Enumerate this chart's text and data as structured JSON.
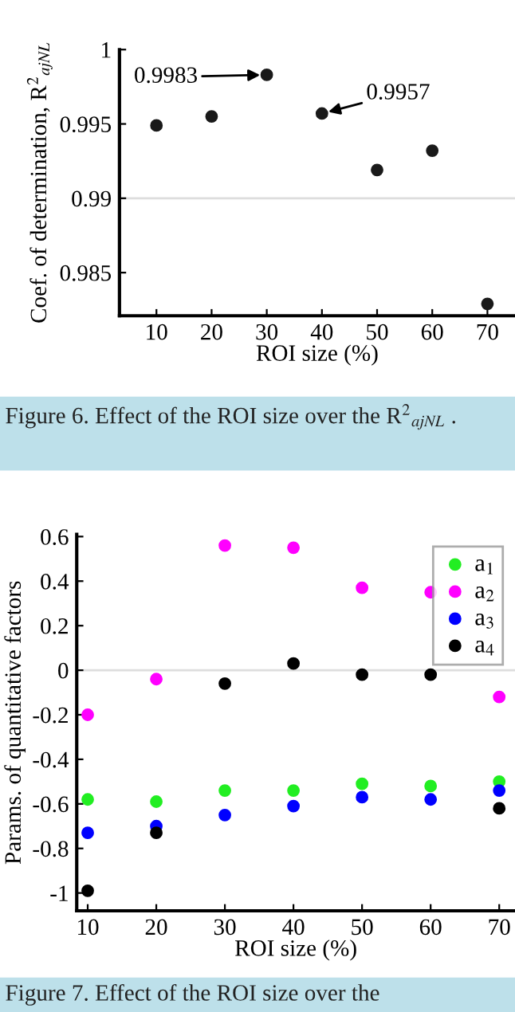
{
  "chart_data": [
    {
      "type": "scatter",
      "ylabel": "Coef. of determination, R$^{2}$$_{ajNL}$",
      "xlabel": "ROI size (%)",
      "x": [
        10,
        20,
        30,
        40,
        50,
        60,
        70
      ],
      "series": [
        {
          "color": "#1a1a1a",
          "values": [
            0.9949,
            0.9955,
            0.9983,
            0.9957,
            0.9919,
            0.9932,
            0.9829
          ]
        }
      ],
      "xlim": [
        3.3,
        75
      ],
      "xticks": [
        10,
        20,
        30,
        40,
        50,
        60,
        70
      ],
      "ylim": [
        0.9821,
        1
      ],
      "yticks": [
        0.985,
        0.99,
        0.995,
        1
      ],
      "ref_lines": [
        {
          "axis": "y",
          "value": 0.99,
          "color": "#dddddd"
        }
      ],
      "marker": "circle",
      "grid": false,
      "legend": false,
      "annotations": [
        {
          "text": "0.9983",
          "x": 30,
          "y": 0.9983
        },
        {
          "text": "0.9957",
          "x": 40,
          "y": 0.9957
        },
        "Figure 6. Effect of the ROI size over the R$^{2}$$_{ajNL}$ ."
      ]
    },
    {
      "type": "scatter",
      "ylabel": "Params. of quantitative factors",
      "xlabel": "ROI size (%)",
      "x": [
        10,
        20,
        30,
        40,
        50,
        60,
        70
      ],
      "series": [
        {
          "name": "a$_{1}$",
          "color": "#22ee22",
          "values": [
            -0.58,
            -0.59,
            -0.54,
            -0.54,
            -0.51,
            -0.52,
            -0.5
          ]
        },
        {
          "name": "a$_{2}$",
          "color": "#ff00ff",
          "values": [
            -0.2,
            -0.04,
            0.56,
            0.55,
            0.37,
            0.35,
            -0.12
          ]
        },
        {
          "name": "a$_{3}$",
          "color": "#0000ff",
          "values": [
            -0.73,
            -0.7,
            -0.65,
            -0.61,
            -0.57,
            -0.58,
            -0.54
          ]
        },
        {
          "name": "a$_{4}$",
          "color": "#000000",
          "values": [
            -0.99,
            -0.73,
            -0.06,
            0.03,
            -0.02,
            -0.02,
            -0.62
          ]
        }
      ],
      "xlim": [
        8.4,
        72.3
      ],
      "xticks": [
        10,
        20,
        30,
        40,
        50,
        60,
        70
      ],
      "ylim": [
        -1.08,
        0.61
      ],
      "yticks": [
        -1,
        -0.8,
        -0.6,
        -0.4,
        -0.2,
        0,
        0.2,
        0.4,
        0.6
      ],
      "ref_lines": [
        {
          "axis": "y",
          "value": 0,
          "color": "#dddddd"
        }
      ],
      "marker": "circle",
      "grid": false,
      "legend": "top right",
      "annotations": [
        "Figure 7. Effect of the ROI size over the"
      ]
    }
  ]
}
